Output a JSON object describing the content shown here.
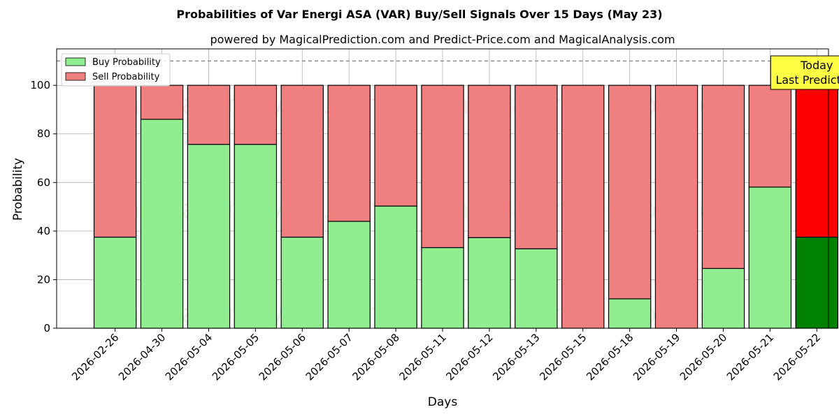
{
  "title": "Probabilities of Var Energi ASA (VAR) Buy/Sell Signals Over 15 Days (May 23)",
  "subtitle": "powered by MagicalPrediction.com and Predict-Price.com and MagicalAnalysis.com",
  "watermarks": [
    "MagicalAnalysis.com",
    "MagicalPrediction.com"
  ],
  "colors": {
    "buy": "#90ee90",
    "sell": "#f08080",
    "buy_today": "#008000",
    "sell_today": "#ff0000",
    "annotation_bg": "#ffff44"
  },
  "chart_data": {
    "type": "bar",
    "stacked": true,
    "xlabel": "Days",
    "ylabel": "Probability",
    "ylim": [
      0,
      115
    ],
    "yticks": [
      0,
      20,
      40,
      60,
      80,
      100
    ],
    "reference_line": 110,
    "grid": true,
    "legend_position": "top-left",
    "categories": [
      "2026-02-26",
      "2026-04-30",
      "2026-05-04",
      "2026-05-05",
      "2026-05-06",
      "2026-05-07",
      "2026-05-08",
      "2026-05-11",
      "2026-05-12",
      "2026-05-13",
      "2026-05-15",
      "2026-05-18",
      "2026-05-19",
      "2026-05-20",
      "2026-05-21",
      "2026-05-22"
    ],
    "series": [
      {
        "name": "Buy Probability",
        "values": [
          37.5,
          86,
          75.7,
          75.7,
          37.5,
          44,
          50.3,
          33.2,
          37.3,
          32.7,
          0,
          12.1,
          0,
          24.6,
          58.1,
          37.5
        ]
      },
      {
        "name": "Sell Probability",
        "values": [
          62.5,
          14,
          24.3,
          24.3,
          62.5,
          56,
          49.7,
          66.8,
          62.7,
          67.3,
          100,
          87.9,
          100,
          75.4,
          41.9,
          62.5
        ]
      }
    ],
    "annotation": {
      "lines": [
        "Today",
        "Last Prediction"
      ],
      "category": "2026-05-22"
    }
  }
}
